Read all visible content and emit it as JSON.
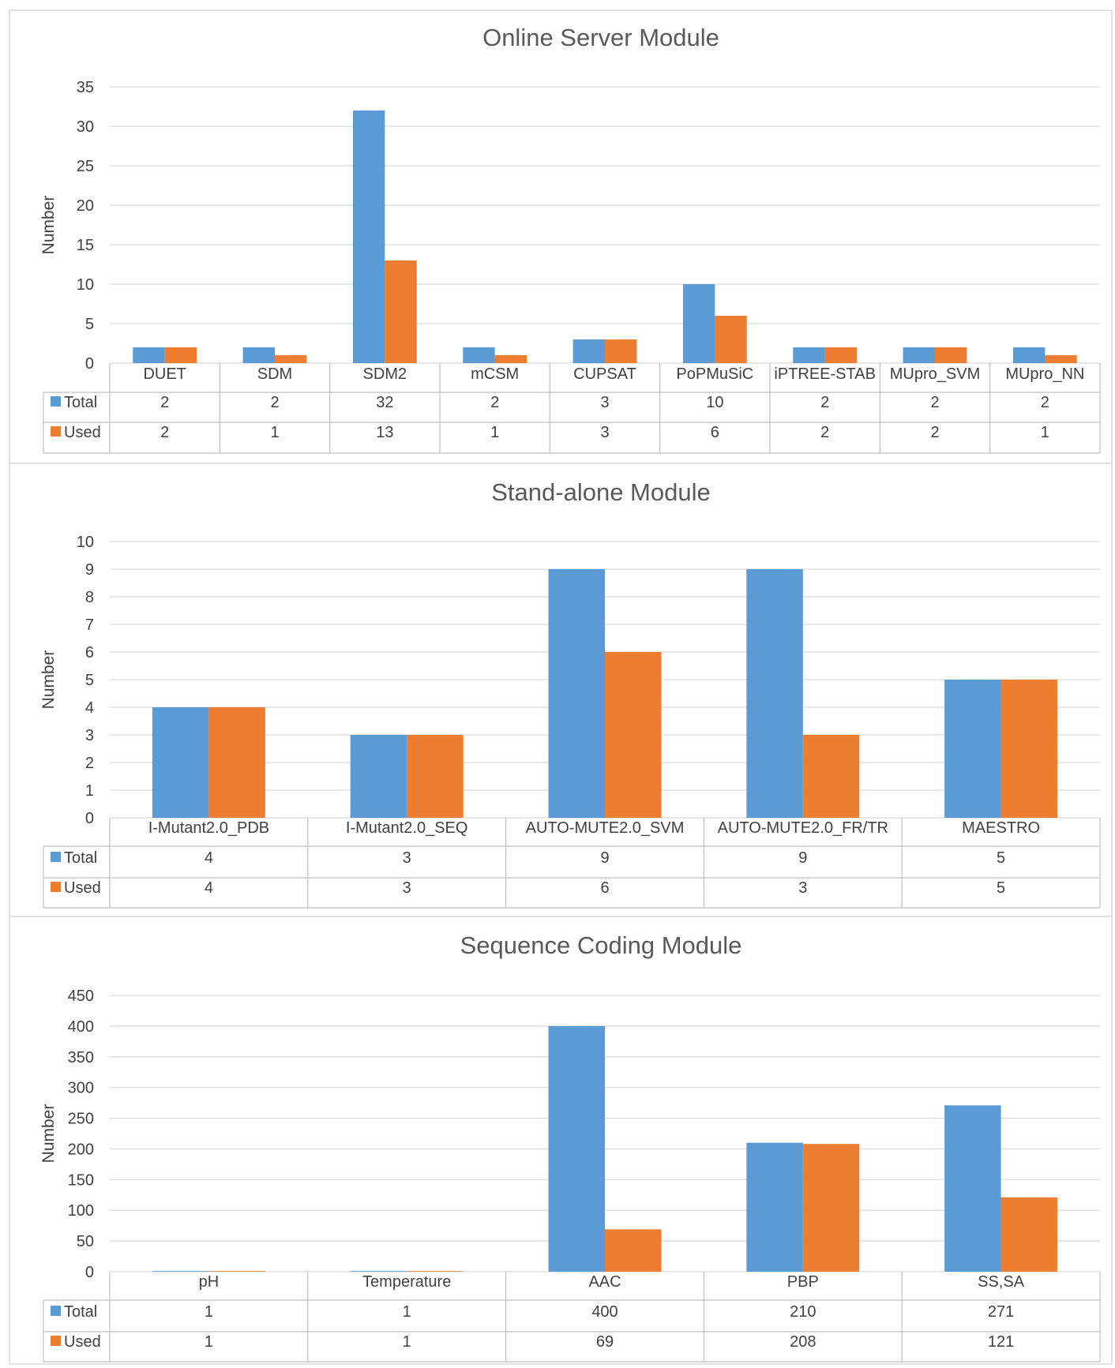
{
  "chart_data": [
    {
      "type": "bar",
      "title": "Online Server Module",
      "ylabel": "Number",
      "xlabel": "",
      "ylim": [
        0,
        35
      ],
      "yticks": [
        0,
        5,
        10,
        15,
        20,
        25,
        30,
        35
      ],
      "categories": [
        "DUET",
        "SDM",
        "SDM2",
        "mCSM",
        "CUPSAT",
        "PoPMuSiC",
        "iPTREE-STAB",
        "MUpro_SVM",
        "MUpro_NN"
      ],
      "series": [
        {
          "name": "Total",
          "color": "#5b9bd5",
          "values": [
            2,
            2,
            32,
            2,
            3,
            10,
            2,
            2,
            2
          ]
        },
        {
          "name": "Used",
          "color": "#ed7d31",
          "values": [
            2,
            1,
            13,
            1,
            3,
            6,
            2,
            2,
            1
          ]
        }
      ],
      "grid": true,
      "legend": "data table"
    },
    {
      "type": "bar",
      "title": "Stand-alone Module",
      "ylabel": "Number",
      "xlabel": "",
      "ylim": [
        0,
        10
      ],
      "yticks": [
        0,
        1,
        2,
        3,
        4,
        5,
        6,
        7,
        8,
        9,
        10
      ],
      "categories": [
        "I-Mutant2.0_PDB",
        "I-Mutant2.0_SEQ",
        "AUTO-MUTE2.0_SVM",
        "AUTO-MUTE2.0_FR/TR",
        "MAESTRO"
      ],
      "series": [
        {
          "name": "Total",
          "color": "#5b9bd5",
          "values": [
            4,
            3,
            9,
            9,
            5
          ]
        },
        {
          "name": "Used",
          "color": "#ed7d31",
          "values": [
            4,
            3,
            6,
            3,
            5
          ]
        }
      ],
      "grid": true,
      "legend": "data table"
    },
    {
      "type": "bar",
      "title": "Sequence Coding Module",
      "ylabel": "Number",
      "xlabel": "",
      "ylim": [
        0,
        450
      ],
      "yticks": [
        0,
        50,
        100,
        150,
        200,
        250,
        300,
        350,
        400,
        450
      ],
      "categories": [
        "pH",
        "Temperature",
        "AAC",
        "PBP",
        "SS,SA"
      ],
      "series": [
        {
          "name": "Total",
          "color": "#5b9bd5",
          "values": [
            1,
            1,
            400,
            210,
            271
          ]
        },
        {
          "name": "Used",
          "color": "#ed7d31",
          "values": [
            1,
            1,
            69,
            208,
            121
          ]
        }
      ],
      "grid": true,
      "legend": "data table"
    }
  ]
}
